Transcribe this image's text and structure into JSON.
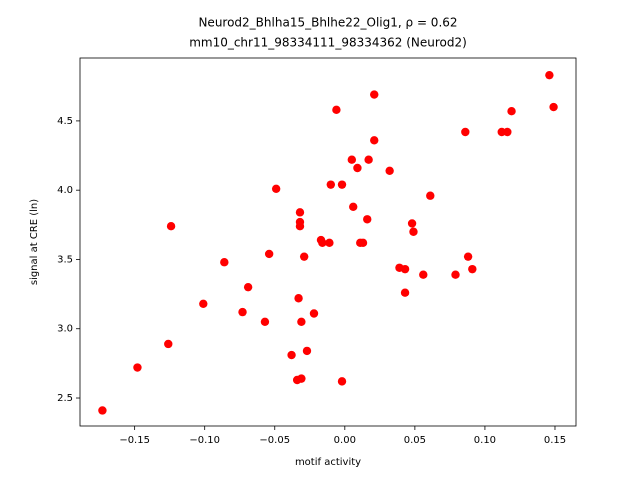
{
  "chart_data": {
    "type": "scatter",
    "title": "Neurod2_Bhlha15_Bhlhe22_Olig1, ρ = 0.62",
    "subtitle": "mm10_chr11_98334111_98334362 (Neurod2)",
    "xlabel": "motif activity",
    "ylabel": "signal at CRE (ln)",
    "color": "#ff0000",
    "xlim": [
      -0.189,
      0.165
    ],
    "ylim": [
      2.298,
      4.954
    ],
    "xticks": [
      {
        "value": -0.15,
        "label": "−0.15"
      },
      {
        "value": -0.1,
        "label": "−0.10"
      },
      {
        "value": -0.05,
        "label": "−0.05"
      },
      {
        "value": 0,
        "label": "0.00"
      },
      {
        "value": 0.05,
        "label": "0.05"
      },
      {
        "value": 0.1,
        "label": "0.10"
      },
      0.15
    ],
    "yticks": [
      2.5,
      {
        "value": 3,
        "label": "3.0"
      },
      3.5,
      {
        "value": 4,
        "label": "4.0"
      },
      4.5
    ],
    "x": [
      -0.173,
      -0.148,
      -0.126,
      -0.124,
      -0.101,
      -0.086,
      -0.073,
      -0.069,
      -0.057,
      -0.054,
      -0.049,
      -0.038,
      -0.034,
      -0.031,
      -0.033,
      -0.032,
      -0.032,
      -0.032,
      -0.031,
      -0.029,
      -0.027,
      -0.022,
      -0.017,
      -0.016,
      -0.011,
      -0.01,
      -0.006,
      -0.002,
      -0.002,
      0.005,
      0.006,
      0.009,
      0.011,
      0.013,
      0.016,
      0.017,
      0.021,
      0.021,
      0.032,
      0.039,
      0.043,
      0.043,
      0.048,
      0.049,
      0.056,
      0.061,
      0.079,
      0.086,
      0.088,
      0.091,
      0.112,
      0.116,
      0.119,
      0.146,
      0.149
    ],
    "y": [
      2.41,
      2.72,
      2.89,
      3.74,
      3.18,
      3.48,
      3.12,
      3.3,
      3.05,
      3.54,
      4.01,
      2.81,
      2.63,
      2.64,
      3.22,
      3.84,
      3.77,
      3.74,
      3.05,
      3.52,
      2.84,
      3.11,
      3.64,
      3.62,
      3.62,
      4.04,
      4.58,
      4.04,
      2.62,
      4.22,
      3.88,
      4.16,
      3.62,
      3.62,
      3.79,
      4.22,
      4.36,
      4.69,
      4.14,
      3.44,
      3.43,
      3.26,
      3.76,
      3.7,
      3.39,
      3.96,
      3.39,
      4.42,
      3.52,
      3.43,
      4.42,
      4.42,
      4.57,
      4.83,
      4.6
    ]
  }
}
